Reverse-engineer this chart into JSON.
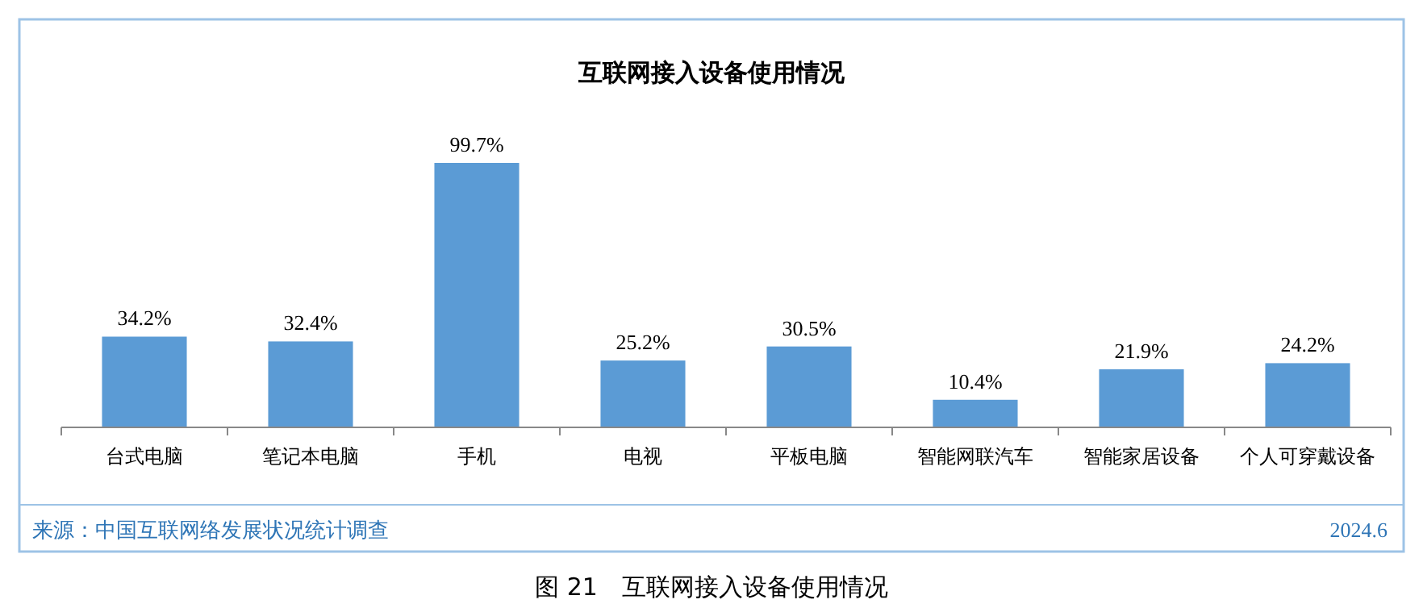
{
  "chart_data": {
    "type": "bar",
    "title": "互联网接入设备使用情况",
    "categories": [
      "台式电脑",
      "笔记本电脑",
      "手机",
      "电视",
      "平板电脑",
      "智能网联汽车",
      "智能家居设备",
      "个人可穿戴设备"
    ],
    "values": [
      34.2,
      32.4,
      99.7,
      25.2,
      30.5,
      10.4,
      21.9,
      24.2
    ],
    "value_labels": [
      "34.2%",
      "32.4%",
      "99.7%",
      "25.2%",
      "30.5%",
      "10.4%",
      "21.9%",
      "24.2%"
    ],
    "color": "#5b9bd5",
    "annotations": [
      "来源：中国互联网络发展状况统计调查",
      "2024.6",
      "图 21　互联网接入设备使用情况"
    ]
  }
}
